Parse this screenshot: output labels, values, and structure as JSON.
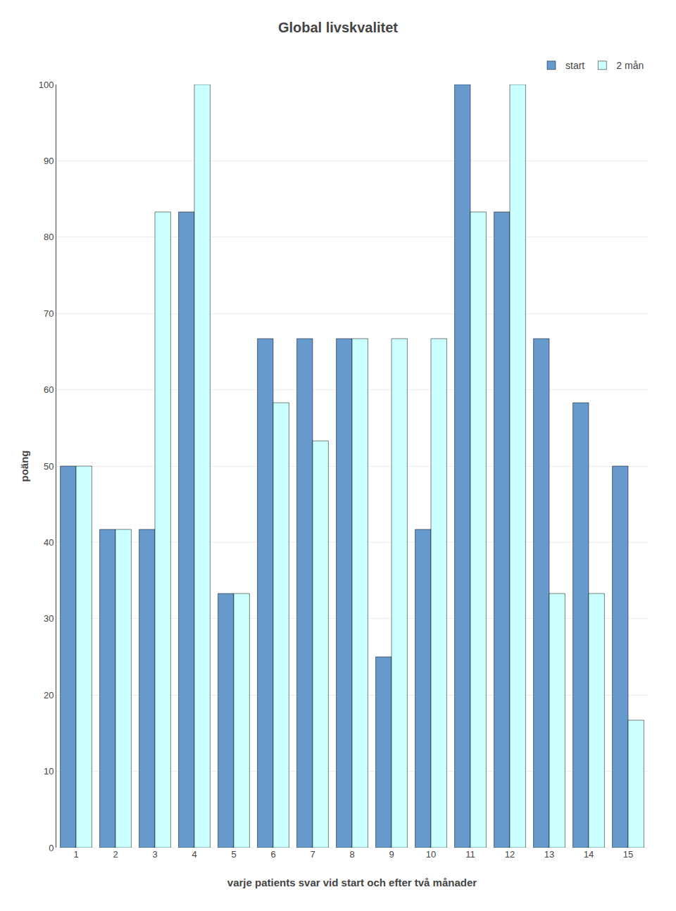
{
  "chart_data": {
    "type": "bar",
    "title": "Global livskvalitet",
    "xlabel": "varje patients svar vid start och efter två månader",
    "ylabel": "poäng",
    "categories": [
      "1",
      "2",
      "3",
      "4",
      "5",
      "6",
      "7",
      "8",
      "9",
      "10",
      "11",
      "12",
      "13",
      "14",
      "15"
    ],
    "series": [
      {
        "name": "start",
        "color": "#6699cc",
        "values": [
          50,
          41.7,
          41.7,
          83.3,
          33.3,
          66.7,
          66.7,
          66.7,
          25,
          41.7,
          100,
          83.3,
          66.7,
          58.3,
          50
        ]
      },
      {
        "name": "2 mån",
        "color": "#ccffff",
        "values": [
          50,
          41.7,
          83.3,
          100,
          33.3,
          58.3,
          53.3,
          66.7,
          66.7,
          66.7,
          83.3,
          100,
          33.3,
          33.3,
          16.7
        ]
      }
    ],
    "ylim": [
      0,
      100
    ],
    "yticks": [
      0,
      10,
      20,
      30,
      40,
      50,
      60,
      70,
      80,
      90,
      100
    ],
    "grid": true,
    "legend": "upper right"
  }
}
